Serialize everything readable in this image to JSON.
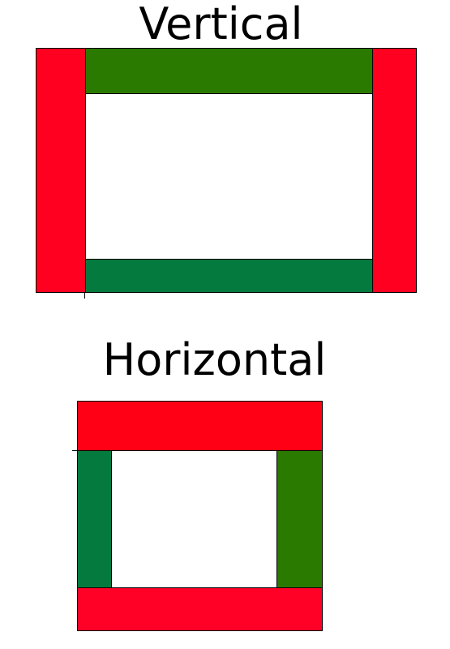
{
  "diagram": {
    "vertical": {
      "title": "Vertical",
      "colors": {
        "side_bars": "#ff0020",
        "top_bar": "#2a7a00",
        "bottom_bar": "#057a3e"
      }
    },
    "horizontal": {
      "title": "Horizontal",
      "colors": {
        "top_bar": "#ff0014",
        "bottom_bar": "#ff0026",
        "left_bar": "#057a3e",
        "right_bar": "#2a7a00"
      }
    }
  }
}
